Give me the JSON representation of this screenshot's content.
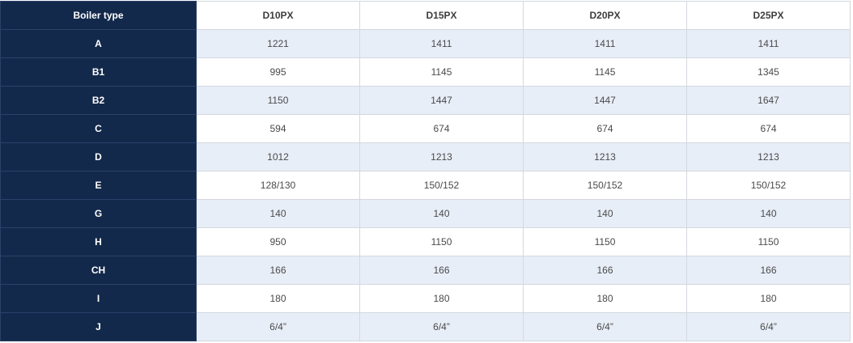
{
  "table": {
    "header": [
      "Boiler type",
      "D10PX",
      "D15PX",
      "D20PX",
      "D25PX"
    ],
    "rows": [
      [
        "A",
        "1221",
        "1411",
        "1411",
        "1411"
      ],
      [
        "B1",
        "995",
        "1145",
        "1145",
        "1345"
      ],
      [
        "B2",
        "1150",
        "1447",
        "1447",
        "1647"
      ],
      [
        "C",
        "594",
        "674",
        "674",
        "674"
      ],
      [
        "D",
        "1012",
        "1213",
        "1213",
        "1213"
      ],
      [
        "E",
        "128/130",
        "150/152",
        "150/152",
        "150/152"
      ],
      [
        "G",
        "140",
        "140",
        "140",
        "140"
      ],
      [
        "H",
        "950",
        "1150",
        "1150",
        "1150"
      ],
      [
        "CH",
        "166",
        "166",
        "166",
        "166"
      ],
      [
        "I",
        "180",
        "180",
        "180",
        "180"
      ],
      [
        "J",
        "6/4”",
        "6/4”",
        "6/4”",
        "6/4”"
      ]
    ]
  }
}
